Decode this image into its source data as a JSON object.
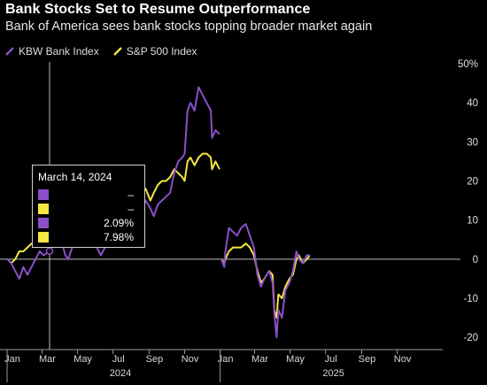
{
  "header": {
    "title": "Bank Stocks Set to Resume Outperformance",
    "subtitle": "Bank of America sees bank stocks topping broader market again"
  },
  "colors": {
    "background": "#000000",
    "kbw": "#8a4fc9",
    "spx": "#f5e642",
    "axis": "#cccccc",
    "zero_line": "#bdbdbd"
  },
  "legend": [
    {
      "label": "KBW Bank Index",
      "color": "#8a4fc9"
    },
    {
      "label": "S&P 500 Index",
      "color": "#f5e642"
    }
  ],
  "tooltip": {
    "date": "March 14, 2024",
    "rows": [
      {
        "color": "#8a4fc9",
        "value": "–"
      },
      {
        "color": "#f5e642",
        "value": "–"
      },
      {
        "color": "#8a4fc9",
        "value": "2.09%"
      },
      {
        "color": "#f5e642",
        "value": "7.98%"
      }
    ]
  },
  "chart_data": {
    "type": "line",
    "title": "Bank Stocks Set to Resume Outperformance",
    "subtitle": "Bank of America sees bank stocks topping broader market again",
    "y_unit": "%",
    "ylim": [
      -22,
      50
    ],
    "y_ticks": [
      -20,
      -10,
      0,
      10,
      20,
      30,
      40,
      50
    ],
    "y_tick_labels": [
      "-20",
      "-10",
      "0",
      "10",
      "20",
      "30",
      "40",
      "50%"
    ],
    "x_ticks": [
      "Jan",
      "Mar",
      "May",
      "Jul",
      "Sep",
      "Nov",
      "Jan",
      "Mar",
      "May",
      "Jul",
      "Sep",
      "Nov"
    ],
    "year_labels": [
      {
        "label": "2024",
        "at_tick": 0
      },
      {
        "label": "2025",
        "at_tick": 6
      }
    ],
    "legend_placement": "top-left",
    "grid": false,
    "series": [
      {
        "name": "KBW Bank Index",
        "color": "#8a4fc9",
        "segments": [
          [
            [
              "2024-01-02",
              0
            ],
            [
              "2024-01-08",
              -1
            ],
            [
              "2024-01-15",
              -3
            ],
            [
              "2024-01-22",
              -5
            ],
            [
              "2024-01-29",
              -2
            ],
            [
              "2024-02-05",
              -4
            ],
            [
              "2024-02-12",
              -2
            ],
            [
              "2024-02-19",
              0
            ],
            [
              "2024-02-26",
              2
            ],
            [
              "2024-03-04",
              1
            ],
            [
              "2024-03-14",
              2.09
            ],
            [
              "2024-03-25",
              5
            ],
            [
              "2024-04-01",
              6
            ],
            [
              "2024-04-10",
              1
            ],
            [
              "2024-04-15",
              0
            ],
            [
              "2024-04-22",
              3
            ],
            [
              "2024-04-29",
              4
            ],
            [
              "2024-05-06",
              5
            ],
            [
              "2024-05-13",
              8
            ],
            [
              "2024-05-20",
              7
            ],
            [
              "2024-05-28",
              5
            ],
            [
              "2024-06-03",
              3
            ],
            [
              "2024-06-10",
              1
            ],
            [
              "2024-06-17",
              3
            ],
            [
              "2024-06-24",
              5
            ],
            [
              "2024-07-01",
              6
            ],
            [
              "2024-07-08",
              10
            ],
            [
              "2024-07-15",
              18
            ],
            [
              "2024-07-19",
              15
            ],
            [
              "2024-07-26",
              17
            ],
            [
              "2024-08-02",
              10
            ],
            [
              "2024-08-05",
              7
            ],
            [
              "2024-08-12",
              9
            ],
            [
              "2024-08-19",
              13
            ],
            [
              "2024-08-26",
              15
            ],
            [
              "2024-09-03",
              13
            ],
            [
              "2024-09-09",
              11
            ],
            [
              "2024-09-16",
              14
            ],
            [
              "2024-09-23",
              15
            ],
            [
              "2024-09-30",
              16
            ],
            [
              "2024-10-07",
              17
            ],
            [
              "2024-10-14",
              22
            ],
            [
              "2024-10-21",
              25
            ],
            [
              "2024-10-28",
              26
            ],
            [
              "2024-11-01",
              27
            ],
            [
              "2024-11-06",
              38
            ],
            [
              "2024-11-11",
              40
            ],
            [
              "2024-11-18",
              38
            ],
            [
              "2024-11-25",
              44
            ],
            [
              "2024-12-02",
              42
            ],
            [
              "2024-12-09",
              40
            ],
            [
              "2024-12-16",
              38
            ],
            [
              "2024-12-18",
              31
            ],
            [
              "2024-12-24",
              33
            ],
            [
              "2024-12-31",
              32
            ]
          ],
          [
            [
              "2025-01-03",
              0
            ],
            [
              "2025-01-08",
              -2
            ],
            [
              "2025-01-10",
              2
            ],
            [
              "2025-01-16",
              8
            ],
            [
              "2025-01-23",
              7
            ],
            [
              "2025-01-30",
              6
            ],
            [
              "2025-02-06",
              8
            ],
            [
              "2025-02-14",
              9
            ],
            [
              "2025-02-21",
              6
            ],
            [
              "2025-02-28",
              3
            ],
            [
              "2025-03-06",
              -4
            ],
            [
              "2025-03-12",
              -7
            ],
            [
              "2025-03-18",
              -5
            ],
            [
              "2025-03-26",
              -3
            ],
            [
              "2025-04-01",
              -6
            ],
            [
              "2025-04-04",
              -14
            ],
            [
              "2025-04-08",
              -20
            ],
            [
              "2025-04-11",
              -13
            ],
            [
              "2025-04-17",
              -15
            ],
            [
              "2025-04-23",
              -8
            ],
            [
              "2025-04-30",
              -6
            ],
            [
              "2025-05-06",
              -3
            ],
            [
              "2025-05-12",
              2
            ],
            [
              "2025-05-16",
              0
            ],
            [
              "2025-05-23",
              -1
            ],
            [
              "2025-05-30",
              1
            ],
            [
              "2025-06-04",
              1
            ]
          ]
        ]
      },
      {
        "name": "S&P 500 Index",
        "color": "#f5e642",
        "segments": [
          [
            [
              "2024-01-02",
              0
            ],
            [
              "2024-01-08",
              -1
            ],
            [
              "2024-01-15",
              0
            ],
            [
              "2024-01-22",
              2
            ],
            [
              "2024-01-29",
              2
            ],
            [
              "2024-02-05",
              3
            ],
            [
              "2024-02-12",
              4
            ],
            [
              "2024-02-19",
              4
            ],
            [
              "2024-02-26",
              6
            ],
            [
              "2024-03-04",
              7
            ],
            [
              "2024-03-14",
              7.98
            ],
            [
              "2024-03-25",
              9
            ],
            [
              "2024-04-01",
              10
            ],
            [
              "2024-04-10",
              9
            ],
            [
              "2024-04-19",
              5
            ],
            [
              "2024-04-26",
              7
            ],
            [
              "2024-05-03",
              8
            ],
            [
              "2024-05-10",
              10
            ],
            [
              "2024-05-17",
              11
            ],
            [
              "2024-05-24",
              11
            ],
            [
              "2024-05-31",
              11
            ],
            [
              "2024-06-07",
              13
            ],
            [
              "2024-06-14",
              14
            ],
            [
              "2024-06-21",
              15
            ],
            [
              "2024-06-28",
              15
            ],
            [
              "2024-07-05",
              17
            ],
            [
              "2024-07-12",
              18
            ],
            [
              "2024-07-19",
              16
            ],
            [
              "2024-07-26",
              15
            ],
            [
              "2024-08-02",
              13
            ],
            [
              "2024-08-05",
              12
            ],
            [
              "2024-08-12",
              14
            ],
            [
              "2024-08-19",
              17
            ],
            [
              "2024-08-26",
              18
            ],
            [
              "2024-09-03",
              15
            ],
            [
              "2024-09-09",
              17
            ],
            [
              "2024-09-16",
              19
            ],
            [
              "2024-09-23",
              20
            ],
            [
              "2024-09-30",
              20
            ],
            [
              "2024-10-07",
              21
            ],
            [
              "2024-10-14",
              23
            ],
            [
              "2024-10-21",
              22
            ],
            [
              "2024-10-28",
              21
            ],
            [
              "2024-11-01",
              20
            ],
            [
              "2024-11-06",
              25
            ],
            [
              "2024-11-11",
              26
            ],
            [
              "2024-11-18",
              24
            ],
            [
              "2024-11-25",
              26
            ],
            [
              "2024-12-02",
              27
            ],
            [
              "2024-12-09",
              27
            ],
            [
              "2024-12-16",
              26
            ],
            [
              "2024-12-18",
              23
            ],
            [
              "2024-12-24",
              25
            ],
            [
              "2024-12-31",
              23
            ]
          ],
          [
            [
              "2025-01-03",
              0
            ],
            [
              "2025-01-08",
              -1
            ],
            [
              "2025-01-10",
              0
            ],
            [
              "2025-01-16",
              2
            ],
            [
              "2025-01-23",
              3
            ],
            [
              "2025-01-30",
              3
            ],
            [
              "2025-02-06",
              3
            ],
            [
              "2025-02-14",
              4
            ],
            [
              "2025-02-21",
              3
            ],
            [
              "2025-02-28",
              1
            ],
            [
              "2025-03-06",
              -3
            ],
            [
              "2025-03-12",
              -6
            ],
            [
              "2025-03-18",
              -5
            ],
            [
              "2025-03-26",
              -3
            ],
            [
              "2025-04-01",
              -4
            ],
            [
              "2025-04-04",
              -13
            ],
            [
              "2025-04-08",
              -15
            ],
            [
              "2025-04-11",
              -9
            ],
            [
              "2025-04-17",
              -10
            ],
            [
              "2025-04-23",
              -7
            ],
            [
              "2025-04-30",
              -5
            ],
            [
              "2025-05-06",
              -4
            ],
            [
              "2025-05-12",
              0
            ],
            [
              "2025-05-16",
              1
            ],
            [
              "2025-05-23",
              -1
            ],
            [
              "2025-05-30",
              0
            ],
            [
              "2025-06-04",
              1
            ]
          ]
        ]
      }
    ]
  }
}
